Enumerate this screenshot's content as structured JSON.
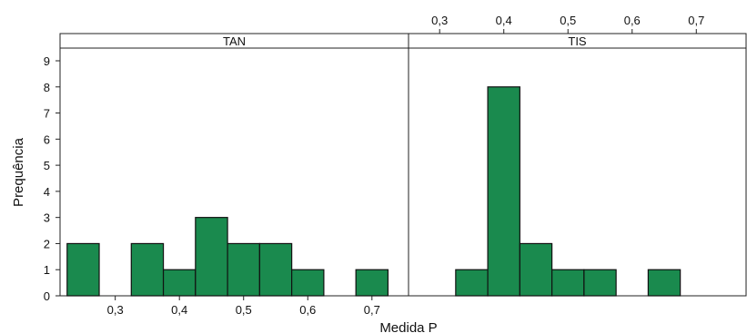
{
  "chart_data": {
    "type": "bar",
    "ylabel": "Prequência",
    "xlabel": "Medida P",
    "ylim": [
      0,
      9
    ],
    "yticks": [
      "0",
      "1",
      "2",
      "3",
      "4",
      "5",
      "6",
      "7",
      "8",
      "9"
    ],
    "xticks": [
      {
        "value": 0.3,
        "label": "0,3"
      },
      {
        "value": 0.4,
        "label": "0,4"
      },
      {
        "value": 0.5,
        "label": "0,5"
      },
      {
        "value": 0.6,
        "label": "0,6"
      },
      {
        "value": 0.7,
        "label": "0,7"
      }
    ],
    "bar_color": "#1a8a4e",
    "bin_width": 0.05,
    "panels": [
      {
        "name": "TAN",
        "xaxis_position": "bottom",
        "bins": [
          {
            "x": 0.25,
            "count": 2
          },
          {
            "x": 0.35,
            "count": 2
          },
          {
            "x": 0.4,
            "count": 1
          },
          {
            "x": 0.45,
            "count": 3
          },
          {
            "x": 0.5,
            "count": 2
          },
          {
            "x": 0.55,
            "count": 2
          },
          {
            "x": 0.6,
            "count": 1
          },
          {
            "x": 0.7,
            "count": 1
          }
        ]
      },
      {
        "name": "TIS",
        "xaxis_position": "top",
        "bins": [
          {
            "x": 0.35,
            "count": 1
          },
          {
            "x": 0.4,
            "count": 8
          },
          {
            "x": 0.45,
            "count": 2
          },
          {
            "x": 0.5,
            "count": 1
          },
          {
            "x": 0.55,
            "count": 1
          },
          {
            "x": 0.65,
            "count": 1
          }
        ]
      }
    ]
  }
}
